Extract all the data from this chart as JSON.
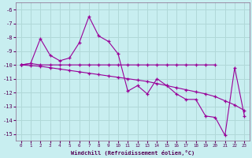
{
  "bg_color": "#c8eef0",
  "grid_color": "#b0d8d8",
  "line_color": "#990099",
  "xlabel": "Windchill (Refroidissement éolien,°C)",
  "xlim": [
    -0.5,
    23.5
  ],
  "ylim": [
    -15.5,
    -5.5
  ],
  "yticks": [
    -6,
    -7,
    -8,
    -9,
    -10,
    -11,
    -12,
    -13,
    -14,
    -15
  ],
  "xticks": [
    0,
    1,
    2,
    3,
    4,
    5,
    6,
    7,
    8,
    9,
    10,
    11,
    12,
    13,
    14,
    15,
    16,
    17,
    18,
    19,
    20,
    21,
    22,
    23
  ],
  "s1_x": [
    0,
    1,
    2,
    3,
    4,
    5,
    6,
    7,
    8,
    9,
    10,
    11,
    12,
    13,
    14,
    15,
    16,
    17,
    18,
    19,
    20,
    21,
    22,
    23
  ],
  "s1_y": [
    -10.0,
    -9.9,
    -8.1,
    -9.3,
    -9.7,
    -9.5,
    -8.4,
    -6.5,
    -7.9,
    -8.3,
    -9.2,
    -11.9,
    -11.5,
    -12.1,
    -11.0,
    -11.5,
    -12.1,
    -12.5,
    -12.5,
    -13.7,
    -13.8,
    -15.1,
    -10.2,
    -13.7
  ],
  "s2_x": [
    0,
    1,
    2,
    3,
    4,
    5,
    6,
    7,
    8,
    9,
    10,
    11,
    12,
    13,
    14,
    15,
    16,
    17,
    18,
    19,
    20
  ],
  "s2_y": [
    -10.0,
    -9.9,
    -10.0,
    -10.0,
    -10.0,
    -10.0,
    -10.0,
    -10.0,
    -10.0,
    -10.0,
    -10.0,
    -10.0,
    -10.0,
    -10.0,
    -10.0,
    -10.0,
    -10.0,
    -10.0,
    -10.0,
    -10.0,
    -10.0
  ],
  "s3_x": [
    0,
    1,
    2,
    3,
    4,
    5,
    6,
    7,
    8,
    9,
    10,
    11,
    12,
    13,
    14,
    15,
    16,
    17,
    18,
    19,
    20,
    21,
    22,
    23
  ],
  "s3_y": [
    -10.0,
    -10.05,
    -10.1,
    -10.2,
    -10.3,
    -10.4,
    -10.5,
    -10.6,
    -10.7,
    -10.8,
    -10.9,
    -11.0,
    -11.1,
    -11.2,
    -11.35,
    -11.5,
    -11.65,
    -11.8,
    -11.95,
    -12.1,
    -12.3,
    -12.6,
    -12.9,
    -13.3
  ]
}
